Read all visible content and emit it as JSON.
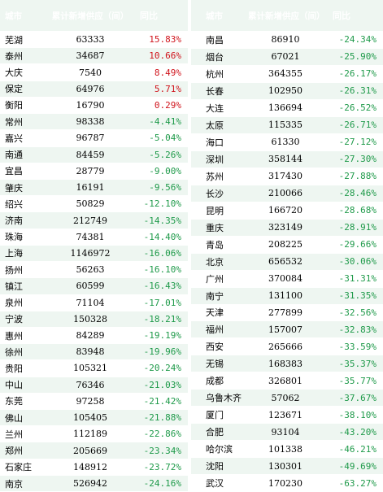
{
  "tables": [
    {
      "header": [
        "城市",
        "累计新增供应（间）",
        "同比"
      ],
      "rows": [
        [
          "芜湖",
          "63333",
          "15.83%"
        ],
        [
          "泰州",
          "34687",
          "10.66%"
        ],
        [
          "大庆",
          "7540",
          "8.49%"
        ],
        [
          "保定",
          "64976",
          "5.71%"
        ],
        [
          "衡阳",
          "16790",
          "0.29%"
        ],
        [
          "常州",
          "98338",
          "-4.41%"
        ],
        [
          "嘉兴",
          "96787",
          "-5.04%"
        ],
        [
          "南通",
          "84459",
          "-5.26%"
        ],
        [
          "宜昌",
          "28779",
          "-9.00%"
        ],
        [
          "肇庆",
          "16191",
          "-9.56%"
        ],
        [
          "绍兴",
          "50829",
          "-12.10%"
        ],
        [
          "济南",
          "212749",
          "-14.35%"
        ],
        [
          "珠海",
          "74381",
          "-14.40%"
        ],
        [
          "上海",
          "1146972",
          "-16.06%"
        ],
        [
          "扬州",
          "56263",
          "-16.10%"
        ],
        [
          "镇江",
          "60599",
          "-16.43%"
        ],
        [
          "泉州",
          "71104",
          "-17.01%"
        ],
        [
          "宁波",
          "150328",
          "-18.21%"
        ],
        [
          "惠州",
          "84289",
          "-19.19%"
        ],
        [
          "徐州",
          "83948",
          "-19.96%"
        ],
        [
          "贵阳",
          "105321",
          "-20.24%"
        ],
        [
          "中山",
          "76346",
          "-21.03%"
        ],
        [
          "东莞",
          "97258",
          "-21.42%"
        ],
        [
          "佛山",
          "105405",
          "-21.88%"
        ],
        [
          "兰州",
          "112189",
          "-22.86%"
        ],
        [
          "郑州",
          "205669",
          "-23.34%"
        ],
        [
          "石家庄",
          "148912",
          "-23.72%"
        ],
        [
          "南京",
          "526942",
          "-24.16%"
        ]
      ]
    },
    {
      "header": [
        "城市",
        "累计新增供应（间）",
        "同比"
      ],
      "rows": [
        [
          "南昌",
          "86910",
          "-24.34%"
        ],
        [
          "烟台",
          "67021",
          "-25.90%"
        ],
        [
          "杭州",
          "364355",
          "-26.17%"
        ],
        [
          "长春",
          "102950",
          "-26.31%"
        ],
        [
          "大连",
          "136694",
          "-26.52%"
        ],
        [
          "太原",
          "115335",
          "-26.71%"
        ],
        [
          "海口",
          "61330",
          "-27.12%"
        ],
        [
          "深圳",
          "358144",
          "-27.30%"
        ],
        [
          "苏州",
          "317430",
          "-27.88%"
        ],
        [
          "长沙",
          "210066",
          "-28.46%"
        ],
        [
          "昆明",
          "166720",
          "-28.68%"
        ],
        [
          "重庆",
          "323149",
          "-28.91%"
        ],
        [
          "青岛",
          "208225",
          "-29.66%"
        ],
        [
          "北京",
          "656532",
          "-30.06%"
        ],
        [
          "广州",
          "370084",
          "-31.31%"
        ],
        [
          "南宁",
          "131100",
          "-31.35%"
        ],
        [
          "天津",
          "277899",
          "-32.56%"
        ],
        [
          "福州",
          "157007",
          "-32.83%"
        ],
        [
          "西安",
          "265666",
          "-33.59%"
        ],
        [
          "无锡",
          "168383",
          "-35.37%"
        ],
        [
          "成都",
          "326801",
          "-35.77%"
        ],
        [
          "乌鲁木齐",
          "57062",
          "-37.67%"
        ],
        [
          "厦门",
          "123671",
          "-38.10%"
        ],
        [
          "合肥",
          "93104",
          "-43.20%"
        ],
        [
          "哈尔滨",
          "101338",
          "-46.21%"
        ],
        [
          "沈阳",
          "130301",
          "-49.69%"
        ],
        [
          "武汉",
          "170230",
          "-63.27%"
        ]
      ]
    }
  ]
}
